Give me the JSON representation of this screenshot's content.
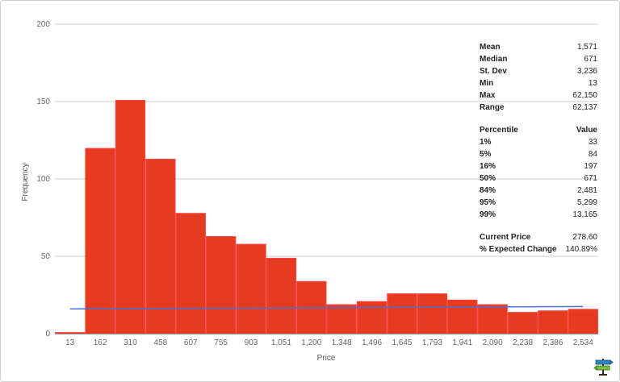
{
  "chart_data": {
    "type": "bar",
    "xlabel": "Price",
    "ylabel": "Frequency",
    "ylim": [
      0,
      200
    ],
    "yticks": [
      0,
      50,
      100,
      150,
      200
    ],
    "x_tick_labels": [
      "13",
      "162",
      "310",
      "458",
      "607",
      "755",
      "903",
      "1,051",
      "1,200",
      "1,348",
      "1,496",
      "1,645",
      "1,793",
      "1,941",
      "2,090",
      "2,238",
      "2,386",
      "2,534"
    ],
    "values": [
      1,
      120,
      151,
      113,
      78,
      63,
      58,
      49,
      34,
      19,
      21,
      26,
      26,
      22,
      19,
      14,
      15,
      16
    ],
    "trend_line": {
      "start": 16,
      "end": 17.5,
      "color": "#4a6fd0"
    },
    "bar_color": "#ff4444",
    "bar_inner_color": "#e03a1a",
    "grid": true
  },
  "stats": {
    "summary": [
      {
        "label": "Mean",
        "value": "1,571"
      },
      {
        "label": "Median",
        "value": "671"
      },
      {
        "label": "St. Dev",
        "value": "3,236"
      },
      {
        "label": "Min",
        "value": "13"
      },
      {
        "label": "Max",
        "value": "62,150"
      },
      {
        "label": "Range",
        "value": "62,137"
      }
    ],
    "percentile_header": {
      "label": "Percentile",
      "value": "Value"
    },
    "percentiles": [
      {
        "label": "1%",
        "value": "33"
      },
      {
        "label": "5%",
        "value": "84"
      },
      {
        "label": "16%",
        "value": "197"
      },
      {
        "label": "50%",
        "value": "671"
      },
      {
        "label": "84%",
        "value": "2,481"
      },
      {
        "label": "95%",
        "value": "5,299"
      },
      {
        "label": "99%",
        "value": "13,165"
      }
    ],
    "extra": [
      {
        "label": "Current Price",
        "value": "278.60"
      },
      {
        "label": "% Expected Change",
        "value": "140.89%"
      }
    ]
  }
}
